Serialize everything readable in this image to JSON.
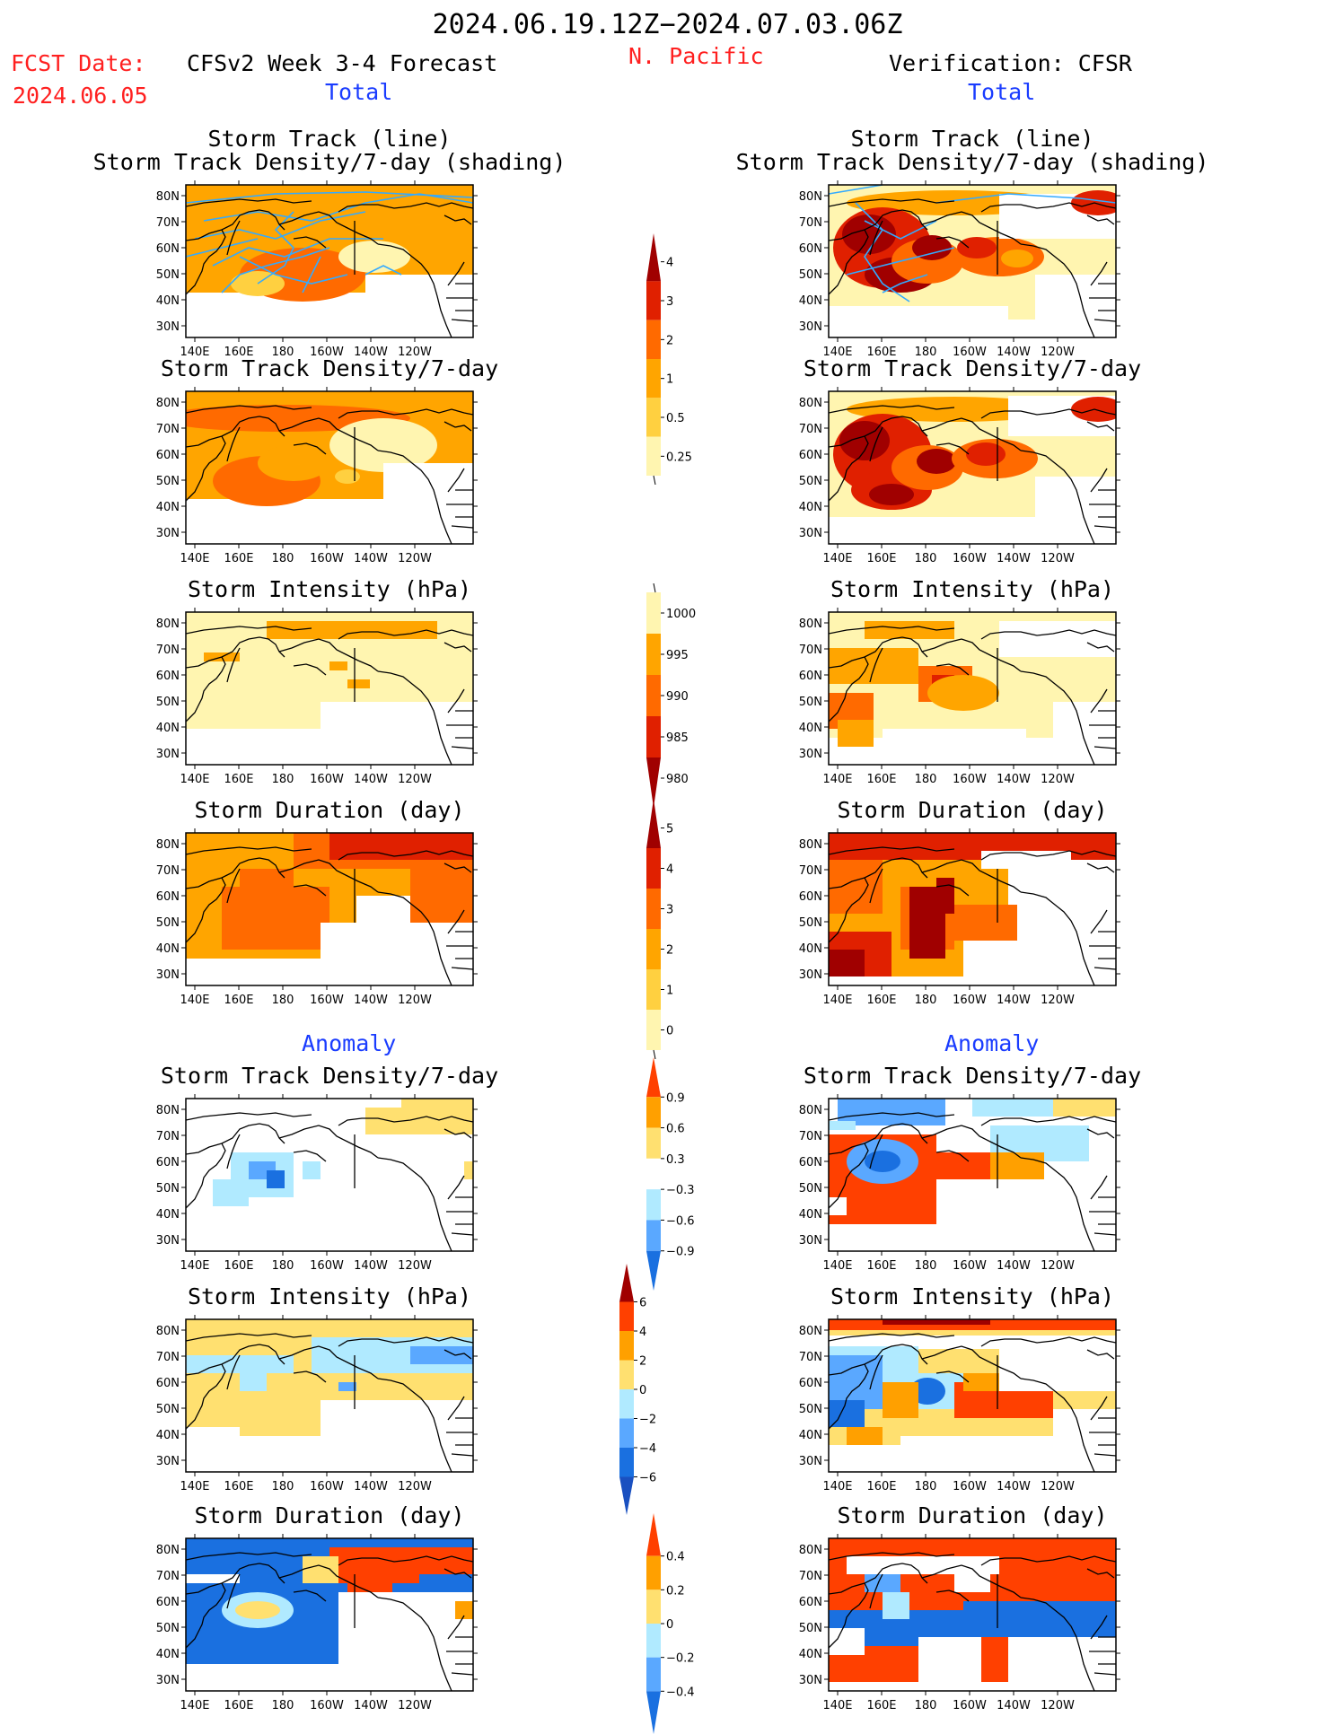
{
  "header": {
    "period": "2024.06.19.12Z−2024.07.03.06Z",
    "region": "N. Pacific",
    "fcst_label": "FCST Date:",
    "fcst_date": "2024.06.05",
    "left_title": "CFSv2 Week 3-4 Forecast",
    "right_title": "Verification: CFSR",
    "total_left": "Total",
    "total_right": "Total",
    "anomaly_left": "Anomaly",
    "anomaly_right": "Anomaly"
  },
  "colors": {
    "text_red": "#ff2020",
    "text_blue": "#1a3cff",
    "track_line": "#33aaff"
  },
  "axes": {
    "lat_ticks": [
      "80N",
      "70N",
      "60N",
      "50N",
      "40N",
      "30N"
    ],
    "lon_ticks": [
      "140E",
      "160E",
      "180",
      "160W",
      "140W",
      "120W"
    ]
  },
  "panels": [
    {
      "side": "left",
      "title1": "Storm Track (line)",
      "title2": "Storm Track Density/7-day (shading)"
    },
    {
      "side": "right",
      "title1": "Storm Track (line)",
      "title2": "Storm Track Density/7-day (shading)"
    },
    {
      "side": "left",
      "title1": "Storm Track Density/7-day"
    },
    {
      "side": "right",
      "title1": "Storm Track Density/7-day"
    },
    {
      "side": "left",
      "title1": "Storm Intensity (hPa)"
    },
    {
      "side": "right",
      "title1": "Storm Intensity (hPa)"
    },
    {
      "side": "left",
      "title1": "Storm Duration (day)"
    },
    {
      "side": "right",
      "title1": "Storm Duration (day)"
    },
    {
      "side": "left",
      "title1": "Storm Track Density/7-day"
    },
    {
      "side": "right",
      "title1": "Storm Track Density/7-day"
    },
    {
      "side": "left",
      "title1": "Storm Intensity (hPa)"
    },
    {
      "side": "right",
      "title1": "Storm Intensity (hPa)"
    },
    {
      "side": "left",
      "title1": "Storm Duration (day)"
    },
    {
      "side": "right",
      "title1": "Storm Duration (day)"
    }
  ],
  "colorbars": [
    {
      "labels": [
        "4",
        "3",
        "2",
        "1",
        "0.5",
        "0.25"
      ],
      "colors": [
        "#a00000",
        "#e02000",
        "#ff6a00",
        "#ffa500",
        "#ffd040",
        "#fff5b0"
      ]
    },
    {
      "labels": [
        "1000",
        "995",
        "990",
        "985",
        "980"
      ],
      "colors": [
        "#fff5b0",
        "#ffa500",
        "#ff6a00",
        "#e02000",
        "#a00000"
      ]
    },
    {
      "labels": [
        "5",
        "4",
        "3",
        "2",
        "1",
        "0"
      ],
      "colors": [
        "#a00000",
        "#e02000",
        "#ff6a00",
        "#ffa500",
        "#ffd040",
        "#fff5b0"
      ]
    },
    {
      "labels": [
        "0.9",
        "0.6",
        "0.3",
        "−0.3",
        "−0.6",
        "−0.9"
      ],
      "colors": [
        "#ff4000",
        "#ffa000",
        "#ffe070",
        "#ffffff",
        "#b0eaff",
        "#5aa8ff",
        "#1a70e0"
      ]
    },
    {
      "labels": [
        "6",
        "4",
        "2",
        "0",
        "−2",
        "−4",
        "−6"
      ],
      "colors": [
        "#a00000",
        "#ff4000",
        "#ffa000",
        "#ffe070",
        "#b0eaff",
        "#5aa8ff",
        "#1a70e0",
        "#1a50c0"
      ]
    },
    {
      "labels": [
        "0.4",
        "0.2",
        "0",
        "−0.2",
        "−0.4"
      ],
      "colors": [
        "#ff4000",
        "#ffa000",
        "#ffe070",
        "#b0eaff",
        "#5aa8ff",
        "#1a70e0"
      ]
    }
  ],
  "chart_data": [
    {
      "type": "heatmap",
      "title": "Storm Track (line) / Storm Track Density/7-day (shading)",
      "source": "CFSv2 Week 3-4 Forecast",
      "component": "Total",
      "x": "longitude 140E–110W",
      "y": "latitude 25N–85N",
      "color_levels": [
        0.25,
        0.5,
        1,
        2,
        3,
        4
      ]
    },
    {
      "type": "heatmap",
      "title": "Storm Track (line) / Storm Track Density/7-day (shading)",
      "source": "Verification: CFSR",
      "component": "Total",
      "color_levels": [
        0.25,
        0.5,
        1,
        2,
        3,
        4
      ]
    },
    {
      "type": "heatmap",
      "title": "Storm Track Density/7-day",
      "source": "CFSv2 Week 3-4 Forecast",
      "component": "Total",
      "color_levels": [
        0.25,
        0.5,
        1,
        2,
        3,
        4
      ]
    },
    {
      "type": "heatmap",
      "title": "Storm Track Density/7-day",
      "source": "Verification: CFSR",
      "component": "Total",
      "color_levels": [
        0.25,
        0.5,
        1,
        2,
        3,
        4
      ]
    },
    {
      "type": "heatmap",
      "title": "Storm Intensity (hPa)",
      "source": "CFSv2 Week 3-4 Forecast",
      "component": "Total",
      "color_levels": [
        1000,
        995,
        990,
        985,
        980
      ]
    },
    {
      "type": "heatmap",
      "title": "Storm Intensity (hPa)",
      "source": "Verification: CFSR",
      "component": "Total",
      "color_levels": [
        1000,
        995,
        990,
        985,
        980
      ]
    },
    {
      "type": "heatmap",
      "title": "Storm Duration (day)",
      "source": "CFSv2 Week 3-4 Forecast",
      "component": "Total",
      "color_levels": [
        0,
        1,
        2,
        3,
        4,
        5
      ]
    },
    {
      "type": "heatmap",
      "title": "Storm Duration (day)",
      "source": "Verification: CFSR",
      "component": "Total",
      "color_levels": [
        0,
        1,
        2,
        3,
        4,
        5
      ]
    },
    {
      "type": "heatmap",
      "title": "Storm Track Density/7-day",
      "source": "CFSv2 Week 3-4 Forecast",
      "component": "Anomaly",
      "color_levels": [
        -0.9,
        -0.6,
        -0.3,
        0.3,
        0.6,
        0.9
      ]
    },
    {
      "type": "heatmap",
      "title": "Storm Track Density/7-day",
      "source": "Verification: CFSR",
      "component": "Anomaly",
      "color_levels": [
        -0.9,
        -0.6,
        -0.3,
        0.3,
        0.6,
        0.9
      ]
    },
    {
      "type": "heatmap",
      "title": "Storm Intensity (hPa)",
      "source": "CFSv2 Week 3-4 Forecast",
      "component": "Anomaly",
      "color_levels": [
        -6,
        -4,
        -2,
        0,
        2,
        4,
        6
      ]
    },
    {
      "type": "heatmap",
      "title": "Storm Intensity (hPa)",
      "source": "Verification: CFSR",
      "component": "Anomaly",
      "color_levels": [
        -6,
        -4,
        -2,
        0,
        2,
        4,
        6
      ]
    },
    {
      "type": "heatmap",
      "title": "Storm Duration (day)",
      "source": "CFSv2 Week 3-4 Forecast",
      "component": "Anomaly",
      "color_levels": [
        -0.4,
        -0.2,
        0,
        0.2,
        0.4
      ]
    },
    {
      "type": "heatmap",
      "title": "Storm Duration (day)",
      "source": "Verification: CFSR",
      "component": "Anomaly",
      "color_levels": [
        -0.4,
        -0.2,
        0,
        0.2,
        0.4
      ]
    }
  ]
}
